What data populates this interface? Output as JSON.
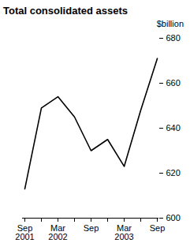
{
  "chart_data": {
    "type": "line",
    "title": "Total consolidated assets",
    "y_label": "$billion",
    "categories": [
      "Sep 2001",
      null,
      "Mar 2002",
      null,
      "Sep",
      null,
      "Mar 2003",
      null,
      "Sep"
    ],
    "values": [
      613,
      649,
      654,
      645,
      630,
      635,
      623,
      648,
      671
    ],
    "color": "#000000",
    "ylim": [
      600,
      680
    ],
    "yticks": [
      600,
      620,
      640,
      660,
      680
    ],
    "grid": false
  }
}
